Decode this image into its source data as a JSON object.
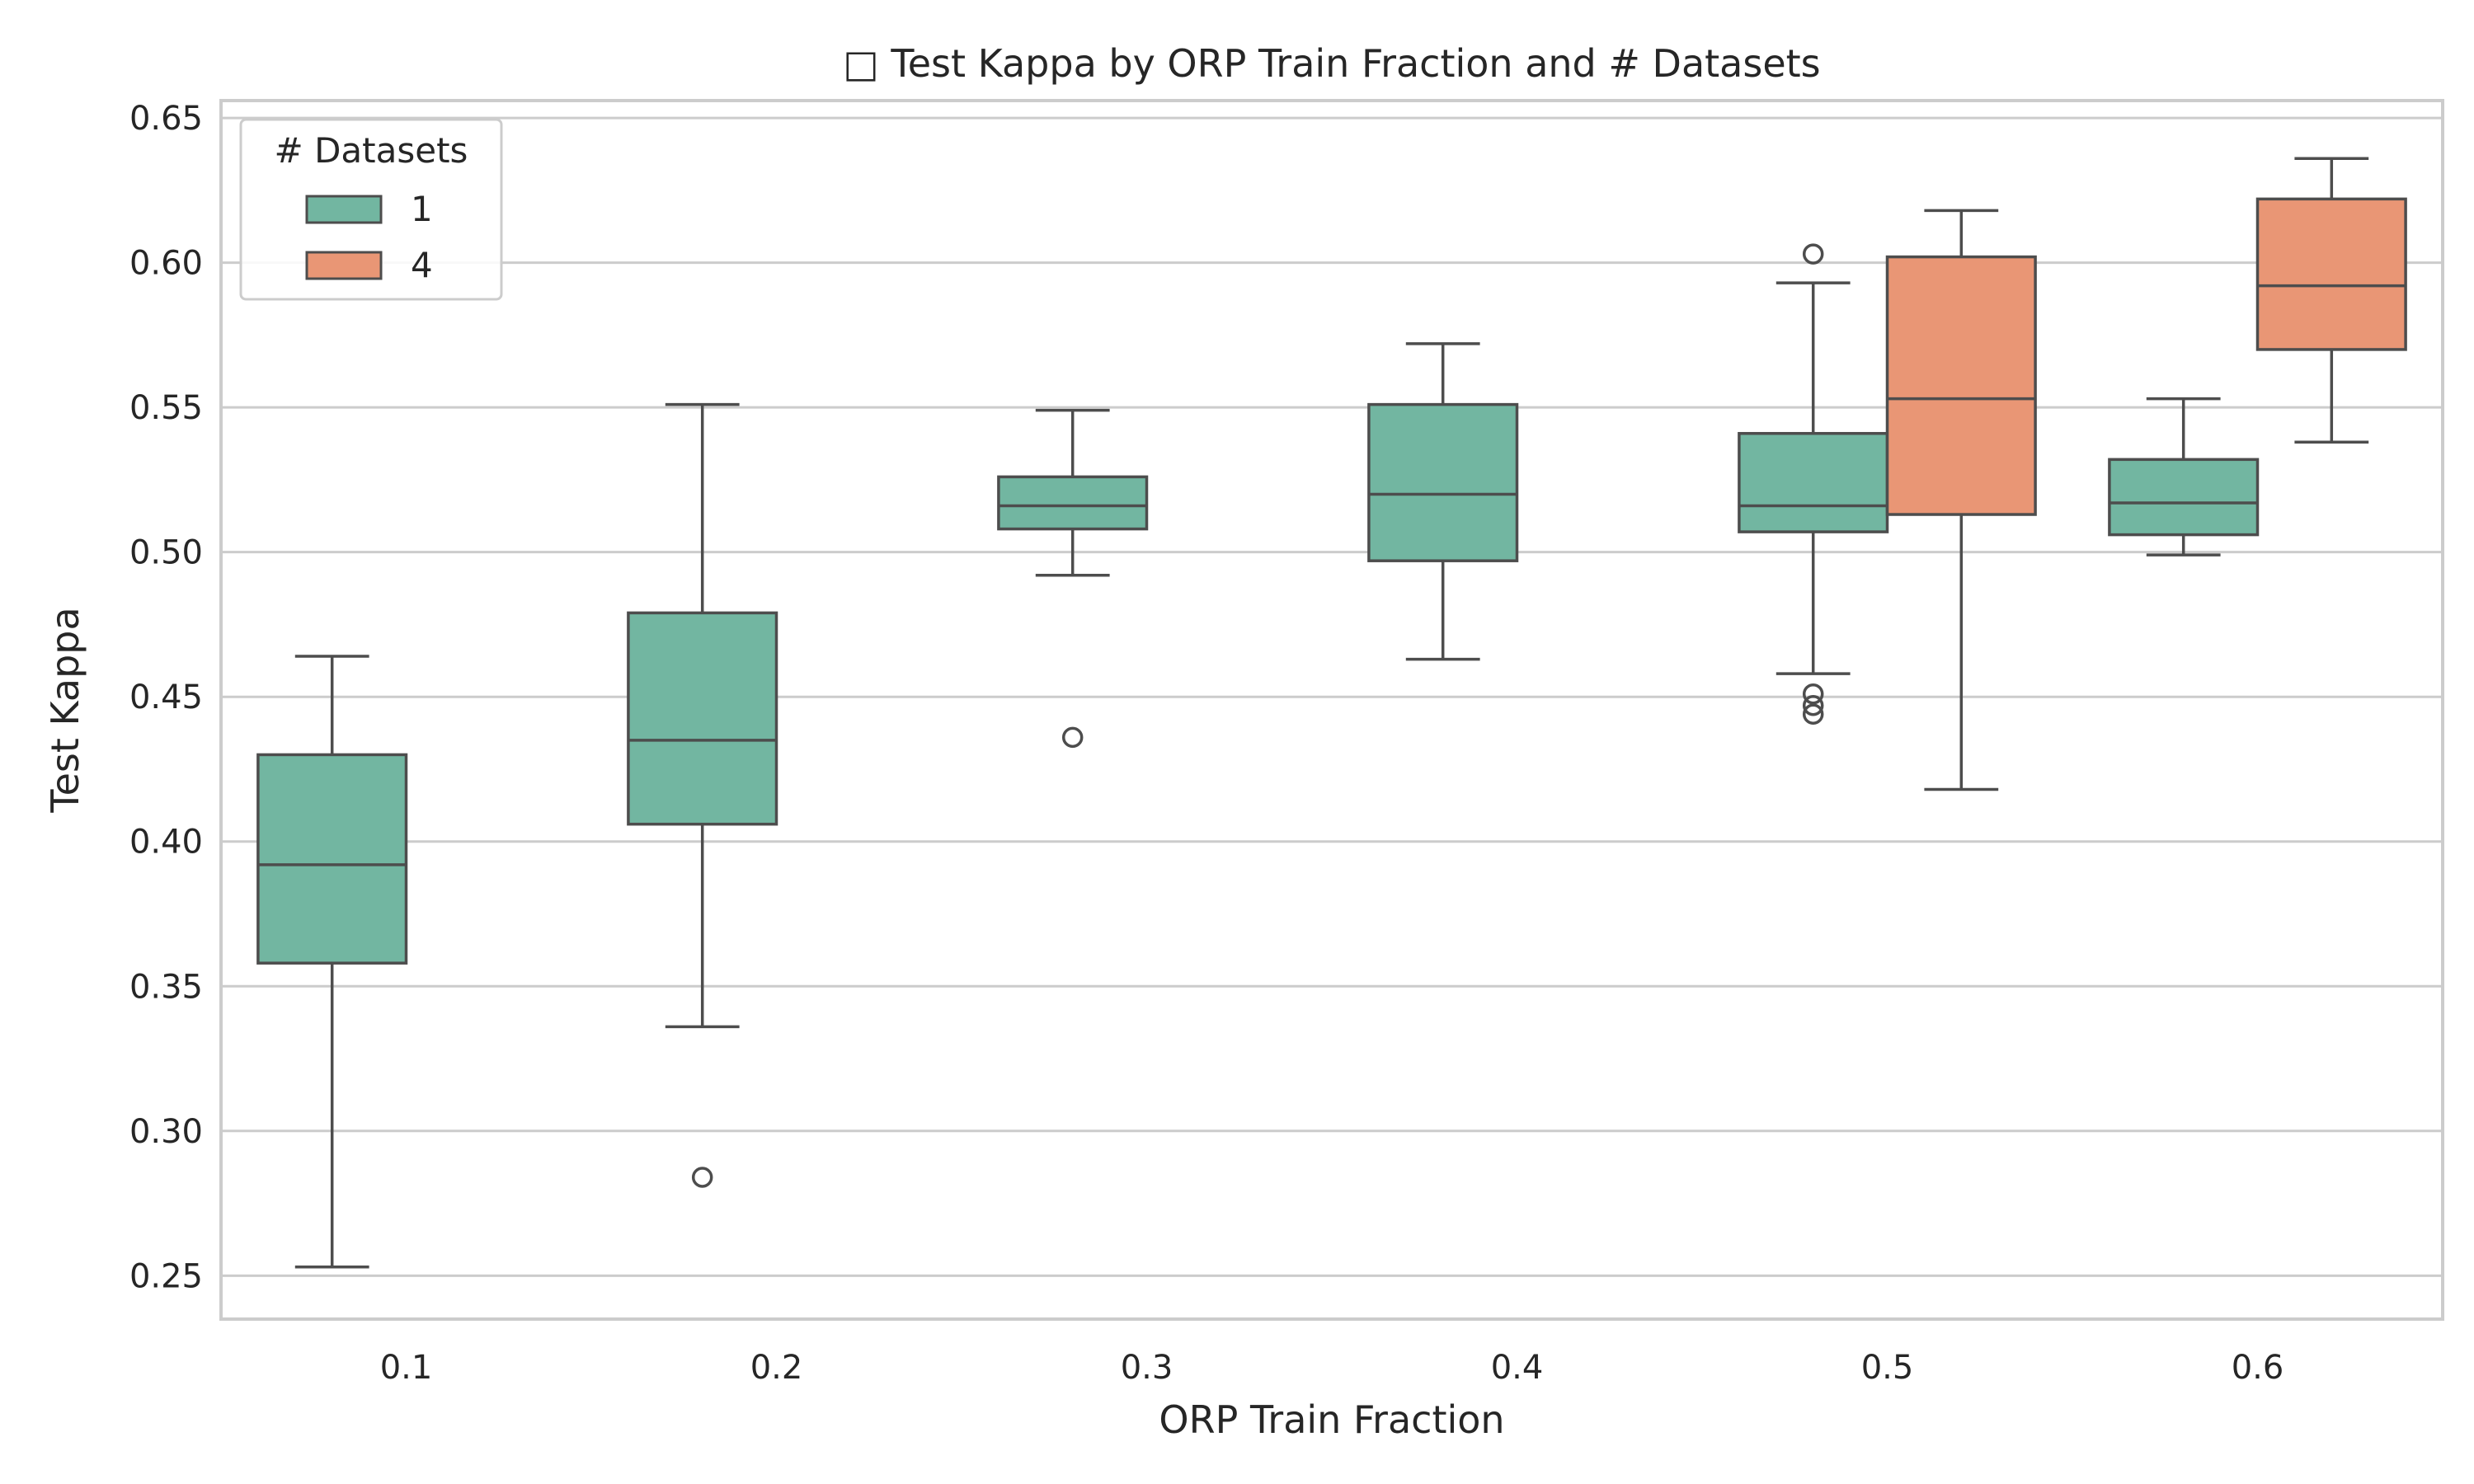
{
  "chart_data": {
    "type": "box",
    "title": "□ Test Kappa by ORP Train Fraction and # Datasets",
    "xlabel": "ORP Train Fraction",
    "ylabel": "Test Kappa",
    "categories": [
      "0.1",
      "0.2",
      "0.3",
      "0.4",
      "0.5",
      "0.6"
    ],
    "ylim": [
      0.235,
      0.656
    ],
    "yticks": [
      0.25,
      0.3,
      0.35,
      0.4,
      0.45,
      0.5,
      0.55,
      0.6,
      0.65
    ],
    "ytick_labels": [
      "0.25",
      "0.30",
      "0.35",
      "0.40",
      "0.45",
      "0.50",
      "0.55",
      "0.60",
      "0.65"
    ],
    "grid": true,
    "legend": {
      "title": "# Datasets",
      "placement": "top-left"
    },
    "series": [
      {
        "name": "1",
        "color": "#72b6a1",
        "boxes": [
          {
            "category": "0.1",
            "whisker_low": 0.253,
            "q1": 0.358,
            "median": 0.392,
            "q3": 0.43,
            "whisker_high": 0.464,
            "outliers": []
          },
          {
            "category": "0.2",
            "whisker_low": 0.336,
            "q1": 0.406,
            "median": 0.435,
            "q3": 0.479,
            "whisker_high": 0.551,
            "outliers": [
              0.284
            ]
          },
          {
            "category": "0.3",
            "whisker_low": 0.492,
            "q1": 0.508,
            "median": 0.516,
            "q3": 0.526,
            "whisker_high": 0.549,
            "outliers": [
              0.436
            ]
          },
          {
            "category": "0.4",
            "whisker_low": 0.463,
            "q1": 0.497,
            "median": 0.52,
            "q3": 0.551,
            "whisker_high": 0.572,
            "outliers": []
          },
          {
            "category": "0.5",
            "whisker_low": 0.458,
            "q1": 0.507,
            "median": 0.516,
            "q3": 0.541,
            "whisker_high": 0.593,
            "outliers": [
              0.603,
              0.451,
              0.447,
              0.444
            ]
          },
          {
            "category": "0.6",
            "whisker_low": 0.499,
            "q1": 0.506,
            "median": 0.517,
            "q3": 0.532,
            "whisker_high": 0.553,
            "outliers": []
          }
        ]
      },
      {
        "name": "4",
        "color": "#e99675",
        "boxes": [
          {
            "category": "0.5",
            "whisker_low": 0.418,
            "q1": 0.513,
            "median": 0.553,
            "q3": 0.602,
            "whisker_high": 0.618,
            "outliers": []
          },
          {
            "category": "0.6",
            "whisker_low": 0.538,
            "q1": 0.57,
            "median": 0.592,
            "q3": 0.622,
            "whisker_high": 0.636,
            "outliers": []
          }
        ]
      }
    ]
  }
}
